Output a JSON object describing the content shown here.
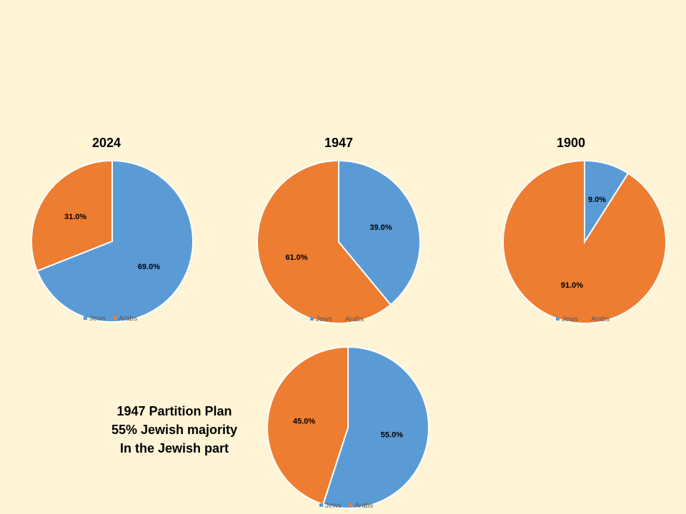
{
  "colors": {
    "jews": "#5b9bd5",
    "arabs": "#ed7d31",
    "background": "#fff4d6"
  },
  "legend": {
    "jews": "Jews",
    "arabs": "Arabs"
  },
  "caption": {
    "line1": "1947 Partition  Plan",
    "line2": "55% Jewish majority",
    "line3": "In the Jewish part"
  },
  "chart_data": [
    {
      "type": "pie",
      "title": "2024",
      "labels": [
        "Jews",
        "Arabs"
      ],
      "values": [
        69.0,
        31.0
      ],
      "value_labels": [
        "69.0%",
        "31.0%"
      ]
    },
    {
      "type": "pie",
      "title": "1947",
      "labels": [
        "Jews",
        "Arabs"
      ],
      "values": [
        39.0,
        61.0
      ],
      "value_labels": [
        "39.0%",
        "61.0%"
      ]
    },
    {
      "type": "pie",
      "title": "1900",
      "labels": [
        "Jews",
        "Arabs"
      ],
      "values": [
        9.0,
        91.0
      ],
      "value_labels": [
        "9.0%",
        "91.0%"
      ]
    },
    {
      "type": "pie",
      "title": "",
      "labels": [
        "Jews",
        "Arabs"
      ],
      "values": [
        55.0,
        45.0
      ],
      "value_labels": [
        "55.0%",
        "45.0%"
      ]
    }
  ]
}
